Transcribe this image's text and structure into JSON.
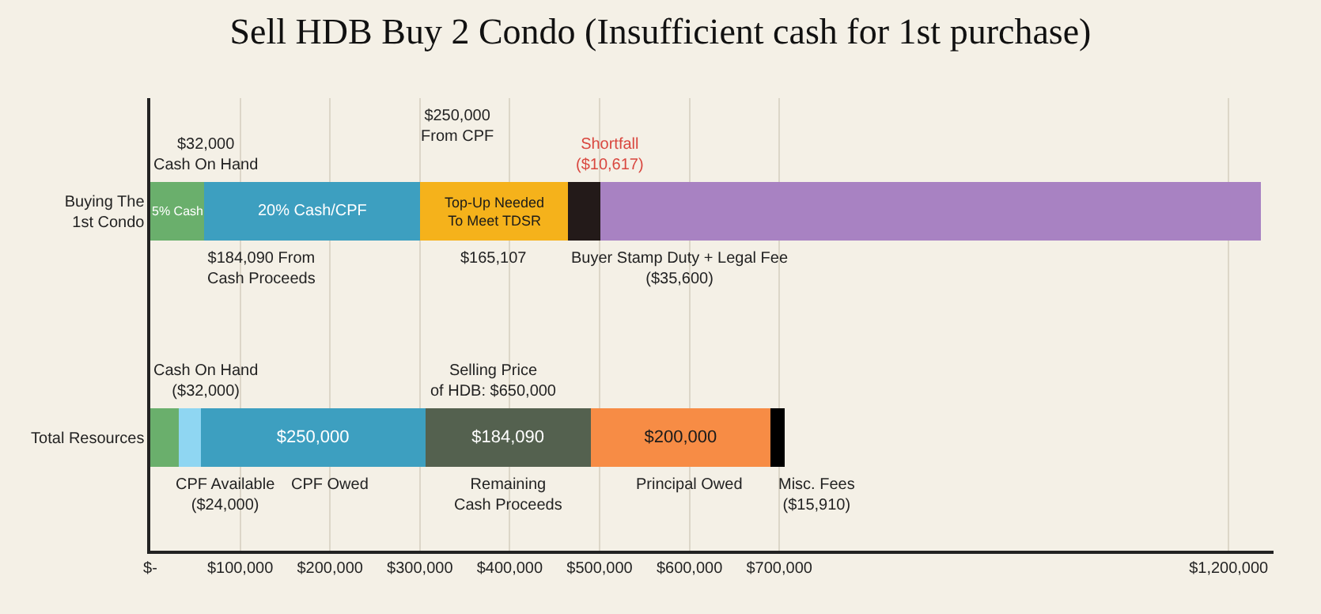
{
  "chart_data": {
    "type": "bar",
    "orientation": "horizontal",
    "stacked": true,
    "title": "Sell HDB Buy 2 Condo (Insufficient cash for 1st purchase)",
    "categories": [
      "Buying The\n1st Condo",
      "Total Resources"
    ],
    "series": [
      {
        "colors": [
          "#6aaf6c",
          "#6aaf6c"
        ],
        "values": [
          60000,
          32000
        ]
      },
      {
        "colors": [
          "#3d9fc0",
          "#8fd6f2"
        ],
        "values": [
          240000,
          24000
        ]
      },
      {
        "colors": [
          "#f5b21b",
          "#3d9fc0"
        ],
        "values": [
          165107,
          250000
        ],
        "value_labels": [
          null,
          "$250,000"
        ]
      },
      {
        "colors": [
          "#231a19",
          "#54614f"
        ],
        "values": [
          35600,
          184090
        ],
        "value_labels": [
          null,
          "$184,090"
        ]
      },
      {
        "colors": [
          "#a882c2",
          "#f78c45"
        ],
        "values": [
          735000,
          200000
        ],
        "value_labels": [
          null,
          "$200,000"
        ]
      },
      {
        "colors": [
          "#000000",
          "#000000"
        ],
        "values": [
          null,
          15910
        ]
      }
    ],
    "xlim": [
      0,
      1250000
    ],
    "xticks": [
      {
        "value": 0,
        "label": "$-"
      },
      {
        "value": 100000,
        "label": "$100,000"
      },
      {
        "value": 200000,
        "label": "$200,000"
      },
      {
        "value": 300000,
        "label": "$300,000"
      },
      {
        "value": 400000,
        "label": "$400,000"
      },
      {
        "value": 500000,
        "label": "$500,000"
      },
      {
        "value": 600000,
        "label": "$600,000"
      },
      {
        "value": 700000,
        "label": "$700,000"
      },
      {
        "value": 1200000,
        "label": "$1,200,000"
      }
    ],
    "grid": "x",
    "annotations": [
      "$32,000\nCash On Hand",
      "5% Cash",
      "20% Cash/CPF",
      "Top-Up Needed To Meet TDSR",
      "$250,000 From CPF",
      "Shortfall ($10,617)",
      "$184,090 From Cash Proceeds",
      "$165,107",
      "Buyer Stamp Duty + Legal Fee\n($35,600)",
      "Cash On Hand\n($32,000)",
      "Selling Price of HDB: $650,000",
      "CPF Available\n($24,000)",
      "CPF Owed",
      "Remaining Cash Proceeds",
      "Principal Owed",
      "Misc. Fees\n($15,910)"
    ]
  }
}
